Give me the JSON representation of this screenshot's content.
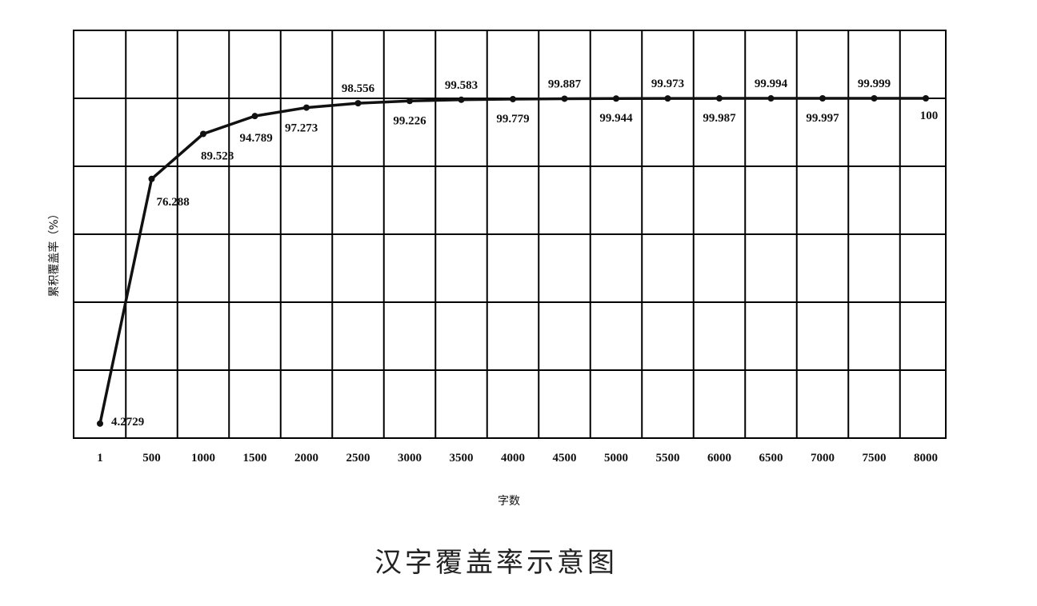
{
  "chart_data": {
    "type": "line",
    "title": "汉字覆盖率示意图",
    "xlabel": "字数",
    "ylabel": "累积覆盖率（%）",
    "grid": true,
    "categories": [
      "1",
      "500",
      "1000",
      "1500",
      "2000",
      "2500",
      "3000",
      "3500",
      "4000",
      "4500",
      "5000",
      "5500",
      "6000",
      "6500",
      "7000",
      "7500",
      "8000"
    ],
    "values": [
      4.2729,
      76.288,
      89.528,
      94.789,
      97.273,
      98.556,
      99.226,
      99.583,
      99.779,
      99.887,
      99.944,
      99.973,
      99.987,
      99.994,
      99.997,
      99.999,
      100
    ],
    "point_labels": [
      "4.2729",
      "76.288",
      "89.528",
      "94.789",
      "97.273",
      "98.556",
      "99.226",
      "99.583",
      "99.779",
      "99.887",
      "99.944",
      "99.973",
      "99.987",
      "99.994",
      "99.997",
      "99.999",
      "100"
    ],
    "ylim": [
      0,
      120
    ]
  }
}
